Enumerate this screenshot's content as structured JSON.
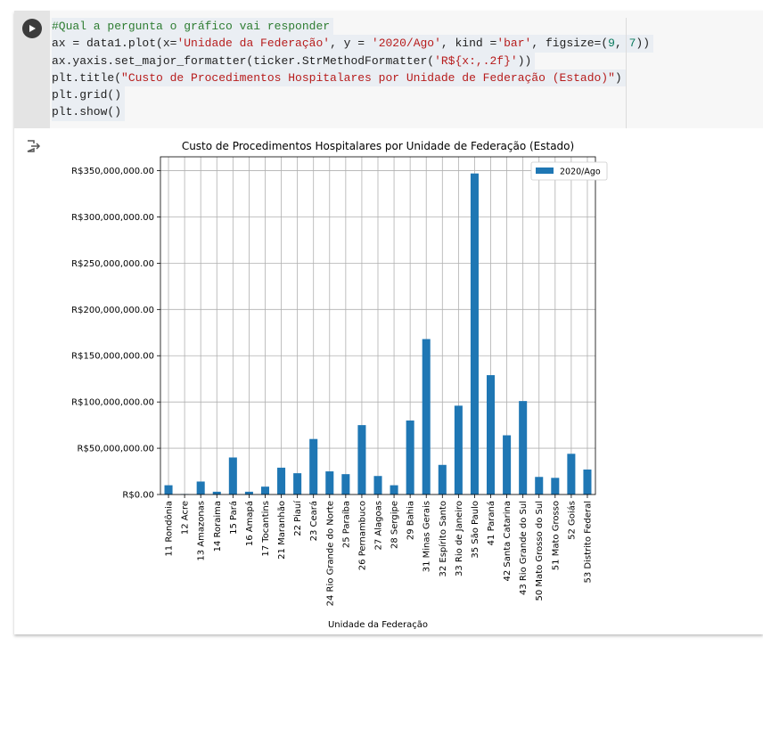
{
  "code": {
    "lines": [
      [
        {
          "t": "#Qual a pergunta o gráfico vai responder",
          "c": "c-comment"
        }
      ],
      [
        {
          "t": "ax = data1.plot(x=",
          "c": ""
        },
        {
          "t": "'Unidade da Federação'",
          "c": "c-str"
        },
        {
          "t": ", y = ",
          "c": ""
        },
        {
          "t": "'2020/Ago'",
          "c": "c-str"
        },
        {
          "t": ", kind =",
          "c": ""
        },
        {
          "t": "'bar'",
          "c": "c-str"
        },
        {
          "t": ", figsize=(",
          "c": ""
        },
        {
          "t": "9",
          "c": "c-num"
        },
        {
          "t": ", ",
          "c": ""
        },
        {
          "t": "7",
          "c": "c-num"
        },
        {
          "t": "))",
          "c": ""
        }
      ],
      [
        {
          "t": "ax.yaxis.set_major_formatter(ticker.StrMethodFormatter(",
          "c": ""
        },
        {
          "t": "'R${x:,.2f}'",
          "c": "c-str"
        },
        {
          "t": "))",
          "c": ""
        }
      ],
      [
        {
          "t": "plt.title(",
          "c": ""
        },
        {
          "t": "\"Custo de Procedimentos Hospitalares por Unidade de Federação (Estado)\"",
          "c": "c-str"
        },
        {
          "t": ")",
          "c": ""
        }
      ],
      [
        {
          "t": "plt.grid()",
          "c": ""
        }
      ],
      [
        {
          "t": "plt.show()",
          "c": ""
        }
      ]
    ]
  },
  "icons": {
    "run": "play-icon",
    "output": "output-exit-icon"
  },
  "colors": {
    "bar": "#1f77b4",
    "grid": "#b0b0b0"
  },
  "chart_data": {
    "type": "bar",
    "title": "Custo de Procedimentos Hospitalares por Unidade de Federação (Estado)",
    "xlabel": "Unidade da Federação",
    "ylabel": "",
    "legend": {
      "placement": "top-right",
      "entries": [
        "2020/Ago"
      ]
    },
    "grid": true,
    "ylim": [
      0,
      365000000
    ],
    "yticks": [
      0,
      50000000,
      100000000,
      150000000,
      200000000,
      250000000,
      300000000,
      350000000
    ],
    "ytick_labels": [
      "R$0.00",
      "R$50,000,000.00",
      "R$100,000,000.00",
      "R$150,000,000.00",
      "R$200,000,000.00",
      "R$250,000,000.00",
      "R$300,000,000.00",
      "R$350,000,000.00"
    ],
    "categories": [
      "11 Rondônia",
      "12 Acre",
      "13 Amazonas",
      "14 Roraima",
      "15 Pará",
      "16 Amapá",
      "17 Tocantins",
      "21 Maranhão",
      "22 Piauí",
      "23 Ceará",
      "24 Rio Grande do Norte",
      "25 Paraíba",
      "26 Pernambuco",
      "27 Alagoas",
      "28 Sergipe",
      "29 Bahia",
      "31 Minas Gerais",
      "32 Espírito Santo",
      "33 Rio de Janeiro",
      "35 São Paulo",
      "41 Paraná",
      "42 Santa Catarina",
      "43 Rio Grande do Sul",
      "50 Mato Grosso do Sul",
      "51 Mato Grosso",
      "52 Goiás",
      "53 Distrito Federal"
    ],
    "series": [
      {
        "name": "2020/Ago",
        "values": [
          10000000,
          500000,
          14000000,
          3000000,
          40000000,
          3000000,
          8500000,
          29000000,
          23000000,
          60000000,
          25000000,
          22000000,
          75000000,
          20000000,
          10000000,
          80000000,
          168000000,
          32000000,
          96000000,
          347000000,
          129000000,
          64000000,
          101000000,
          19000000,
          18000000,
          44000000,
          27000000
        ]
      }
    ]
  }
}
